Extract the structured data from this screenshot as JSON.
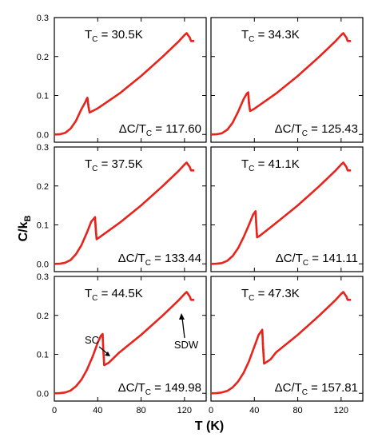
{
  "figure": {
    "ylabel_main": "C/k",
    "ylabel_sub": "B",
    "xlabel": "T (K)"
  },
  "chart_data": {
    "type": "line",
    "layout": "3 rows x 2 columns",
    "xlim": [
      0,
      140
    ],
    "ylim": [
      -0.02,
      0.3
    ],
    "xticks": [
      "0",
      "40",
      "80",
      "120"
    ],
    "yticks": [
      "0.0",
      "0.1",
      "0.2",
      "0.3"
    ],
    "series_color": "#e8231c",
    "panels": [
      {
        "tc_symbol": "T",
        "tc_sub": "C",
        "tc_value": " = 30.5K",
        "ratio_label": "ΔC/T",
        "ratio_sub": "C",
        "ratio_value": " = 117.60",
        "points": [
          [
            0,
            0
          ],
          [
            5,
            0.0003
          ],
          [
            10,
            0.004
          ],
          [
            15,
            0.015
          ],
          [
            20,
            0.035
          ],
          [
            25,
            0.065
          ],
          [
            28,
            0.08
          ],
          [
            30,
            0.092
          ],
          [
            30.5,
            0.094
          ],
          [
            31.5,
            0.07
          ],
          [
            32.5,
            0.056
          ],
          [
            40,
            0.067
          ],
          [
            60,
            0.105
          ],
          [
            80,
            0.15
          ],
          [
            100,
            0.2
          ],
          [
            115,
            0.24
          ],
          [
            120,
            0.255
          ],
          [
            122,
            0.26
          ],
          [
            125,
            0.248
          ],
          [
            126,
            0.24
          ],
          [
            127,
            0.24
          ],
          [
            129,
            0.24
          ]
        ]
      },
      {
        "tc_symbol": "T",
        "tc_sub": "C",
        "tc_value": " = 34.3K",
        "ratio_label": "ΔC/T",
        "ratio_sub": "C",
        "ratio_value": " = 125.43",
        "points": [
          [
            0,
            0
          ],
          [
            5,
            0.0003
          ],
          [
            10,
            0.003
          ],
          [
            15,
            0.012
          ],
          [
            20,
            0.03
          ],
          [
            25,
            0.058
          ],
          [
            30,
            0.09
          ],
          [
            33,
            0.105
          ],
          [
            34.3,
            0.108
          ],
          [
            35,
            0.08
          ],
          [
            36,
            0.06
          ],
          [
            40,
            0.066
          ],
          [
            60,
            0.105
          ],
          [
            80,
            0.15
          ],
          [
            100,
            0.2
          ],
          [
            115,
            0.24
          ],
          [
            120,
            0.255
          ],
          [
            122,
            0.26
          ],
          [
            125,
            0.248
          ],
          [
            126,
            0.24
          ],
          [
            127,
            0.24
          ],
          [
            129,
            0.24
          ]
        ]
      },
      {
        "tc_symbol": "T",
        "tc_sub": "C",
        "tc_value": " = 37.5K",
        "ratio_label": "ΔC/T",
        "ratio_sub": "C",
        "ratio_value": " = 133.44",
        "points": [
          [
            0,
            0
          ],
          [
            5,
            0.0003
          ],
          [
            10,
            0.003
          ],
          [
            15,
            0.01
          ],
          [
            20,
            0.025
          ],
          [
            25,
            0.048
          ],
          [
            30,
            0.08
          ],
          [
            34,
            0.108
          ],
          [
            37.5,
            0.12
          ],
          [
            38.2,
            0.09
          ],
          [
            39,
            0.063
          ],
          [
            45,
            0.075
          ],
          [
            60,
            0.105
          ],
          [
            80,
            0.15
          ],
          [
            100,
            0.2
          ],
          [
            115,
            0.24
          ],
          [
            120,
            0.255
          ],
          [
            122,
            0.26
          ],
          [
            125,
            0.248
          ],
          [
            126,
            0.24
          ],
          [
            127,
            0.24
          ],
          [
            129,
            0.24
          ]
        ]
      },
      {
        "tc_symbol": "T",
        "tc_sub": "C",
        "tc_value": " = 41.1K",
        "ratio_label": "ΔC/T",
        "ratio_sub": "C",
        "ratio_value": " = 141.11",
        "points": [
          [
            0,
            0
          ],
          [
            5,
            0.0003
          ],
          [
            10,
            0.002
          ],
          [
            15,
            0.008
          ],
          [
            20,
            0.02
          ],
          [
            25,
            0.04
          ],
          [
            30,
            0.068
          ],
          [
            35,
            0.1
          ],
          [
            39,
            0.127
          ],
          [
            41.1,
            0.135
          ],
          [
            41.8,
            0.1
          ],
          [
            42.5,
            0.068
          ],
          [
            45,
            0.072
          ],
          [
            60,
            0.105
          ],
          [
            80,
            0.15
          ],
          [
            100,
            0.2
          ],
          [
            115,
            0.24
          ],
          [
            120,
            0.255
          ],
          [
            122,
            0.26
          ],
          [
            125,
            0.248
          ],
          [
            126,
            0.24
          ],
          [
            127,
            0.24
          ],
          [
            129,
            0.24
          ]
        ]
      },
      {
        "tc_symbol": "T",
        "tc_sub": "C",
        "tc_value": " = 44.5K",
        "ratio_label": "ΔC/T",
        "ratio_sub": "C",
        "ratio_value": " = 149.98",
        "annotation_sc": "SC",
        "annotation_sdw": "SDW",
        "points": [
          [
            0,
            0
          ],
          [
            5,
            0.0003
          ],
          [
            10,
            0.002
          ],
          [
            15,
            0.007
          ],
          [
            20,
            0.018
          ],
          [
            25,
            0.035
          ],
          [
            30,
            0.06
          ],
          [
            35,
            0.092
          ],
          [
            40,
            0.13
          ],
          [
            43,
            0.148
          ],
          [
            44.5,
            0.152
          ],
          [
            45.2,
            0.11
          ],
          [
            46,
            0.072
          ],
          [
            50,
            0.078
          ],
          [
            60,
            0.105
          ],
          [
            80,
            0.15
          ],
          [
            100,
            0.2
          ],
          [
            115,
            0.24
          ],
          [
            120,
            0.255
          ],
          [
            122,
            0.26
          ],
          [
            125,
            0.248
          ],
          [
            126,
            0.24
          ],
          [
            127,
            0.24
          ],
          [
            129,
            0.24
          ]
        ]
      },
      {
        "tc_symbol": "T",
        "tc_sub": "C",
        "tc_value": " = 47.3K",
        "ratio_label": "ΔC/T",
        "ratio_sub": "C",
        "ratio_value": " = 157.81",
        "points": [
          [
            0,
            0
          ],
          [
            5,
            0.0003
          ],
          [
            10,
            0.002
          ],
          [
            15,
            0.006
          ],
          [
            20,
            0.015
          ],
          [
            25,
            0.03
          ],
          [
            30,
            0.052
          ],
          [
            35,
            0.082
          ],
          [
            40,
            0.12
          ],
          [
            44,
            0.15
          ],
          [
            47.3,
            0.163
          ],
          [
            48,
            0.12
          ],
          [
            49,
            0.076
          ],
          [
            55,
            0.087
          ],
          [
            60,
            0.105
          ],
          [
            80,
            0.15
          ],
          [
            100,
            0.2
          ],
          [
            115,
            0.24
          ],
          [
            120,
            0.255
          ],
          [
            122,
            0.26
          ],
          [
            125,
            0.248
          ],
          [
            126,
            0.24
          ],
          [
            127,
            0.24
          ],
          [
            129,
            0.24
          ]
        ]
      }
    ]
  }
}
